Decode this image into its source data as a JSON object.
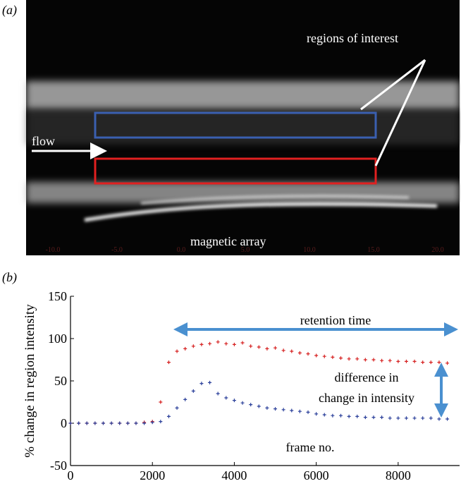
{
  "panel_a": {
    "label": "(a)",
    "annotations": [
      "regions of interest",
      "flow",
      "magnetic array"
    ],
    "scale_labels": [
      "-10.0",
      "-5.0",
      "0.0",
      "5.0",
      "10.0",
      "15.0",
      "20.0"
    ]
  },
  "chart_data": {
    "type": "scatter",
    "panel_label": "(b)",
    "ylabel": "% change in region intensity",
    "xlabel": "frame no.",
    "annotations": [
      "retention time",
      "difference in",
      "change in intensity"
    ],
    "x": [
      0,
      200,
      400,
      600,
      800,
      1000,
      1200,
      1400,
      1600,
      1800,
      2000,
      2200,
      2400,
      2600,
      2800,
      3000,
      3200,
      3400,
      3600,
      3800,
      4000,
      4200,
      4400,
      4600,
      4800,
      5000,
      5200,
      5400,
      5600,
      5800,
      6000,
      6200,
      6400,
      6600,
      6800,
      7000,
      7200,
      7400,
      7600,
      7800,
      8000,
      8200,
      8400,
      8600,
      8800,
      9000,
      9200
    ],
    "series": [
      {
        "color": "#d62020",
        "values": [
          0,
          0,
          0,
          0,
          0,
          0,
          0,
          0,
          0,
          1,
          2,
          25,
          72,
          85,
          88,
          91,
          93,
          94,
          96,
          94,
          93,
          95,
          91,
          90,
          88,
          89,
          86,
          85,
          83,
          82,
          80,
          79,
          78,
          77,
          76,
          76,
          75,
          75,
          74,
          74,
          73,
          73,
          73,
          72,
          72,
          72,
          71
        ]
      },
      {
        "color": "#2a3f9a",
        "values": [
          0,
          0,
          0,
          0,
          0,
          0,
          0,
          0,
          0,
          0,
          1,
          2,
          8,
          18,
          28,
          38,
          47,
          48,
          35,
          30,
          27,
          24,
          22,
          20,
          18,
          17,
          16,
          15,
          14,
          13,
          11,
          10,
          9,
          9,
          8,
          8,
          7,
          7,
          7,
          6,
          6,
          6,
          6,
          6,
          6,
          5,
          5
        ]
      }
    ],
    "xlim": [
      0,
      9500
    ],
    "ylim": [
      -50,
      150
    ],
    "xticks": [
      0,
      2000,
      4000,
      6000,
      8000
    ],
    "yticks": [
      -50,
      0,
      50,
      100,
      150
    ]
  }
}
